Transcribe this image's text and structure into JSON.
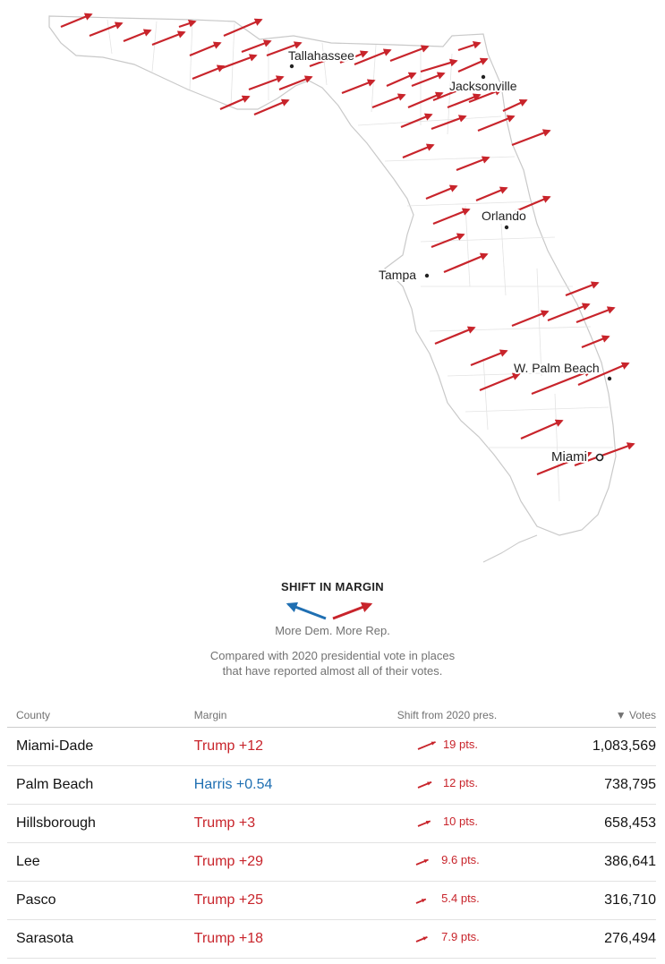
{
  "map": {
    "cities": [
      {
        "name": "Tallahassee",
        "major": false
      },
      {
        "name": "Jacksonville",
        "major": false
      },
      {
        "name": "Orlando",
        "major": false
      },
      {
        "name": "Tampa",
        "major": false
      },
      {
        "name": "W. Palm Beach",
        "major": false
      },
      {
        "name": "Miami",
        "major": true
      }
    ],
    "shift_direction": "Rep.",
    "colors": {
      "rep": "#c8242b",
      "dem": "#1f6fb2",
      "outline": "#c9c9c9"
    }
  },
  "legend": {
    "title": "SHIFT IN MARGIN",
    "dem_label": "More Dem.",
    "rep_label": "More Rep.",
    "note_line1": "Compared with 2020 presidential vote in places",
    "note_line2": "that have reported almost all of their votes."
  },
  "table": {
    "headers": {
      "county": "County",
      "margin": "Margin",
      "shift": "Shift from 2020 pres.",
      "votes": "▼ Votes"
    },
    "rows": [
      {
        "county": "Miami-Dade",
        "margin": "Trump +12",
        "party": "rep",
        "shift": "19 pts.",
        "shift_value": 19,
        "votes": "1,083,569"
      },
      {
        "county": "Palm Beach",
        "margin": "Harris +0.54",
        "party": "dem",
        "shift": "12 pts.",
        "shift_value": 12,
        "votes": "738,795"
      },
      {
        "county": "Hillsborough",
        "margin": "Trump +3",
        "party": "rep",
        "shift": "10 pts.",
        "shift_value": 10,
        "votes": "658,453"
      },
      {
        "county": "Lee",
        "margin": "Trump +29",
        "party": "rep",
        "shift": "9.6 pts.",
        "shift_value": 9.6,
        "votes": "386,641"
      },
      {
        "county": "Pasco",
        "margin": "Trump +25",
        "party": "rep",
        "shift": "5.4 pts.",
        "shift_value": 5.4,
        "votes": "316,710"
      },
      {
        "county": "Sarasota",
        "margin": "Trump +18",
        "party": "rep",
        "shift": "7.9 pts.",
        "shift_value": 7.9,
        "votes": "276,494"
      }
    ]
  }
}
